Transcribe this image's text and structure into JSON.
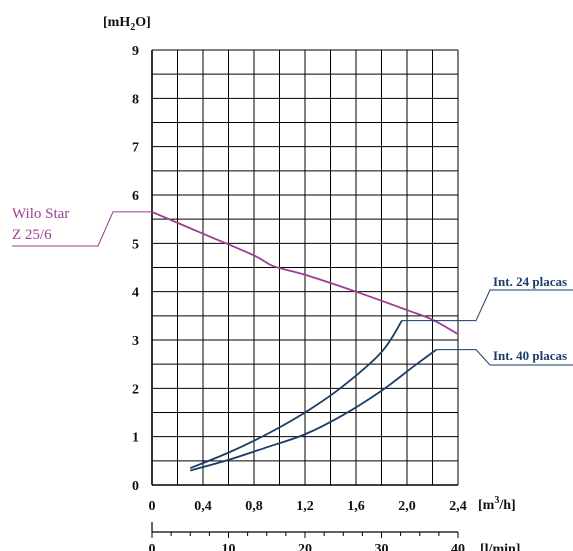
{
  "chart_data": {
    "type": "line",
    "y_unit": {
      "main": "[mH",
      "sub": "2",
      "tail": "O]"
    },
    "x_unit": {
      "main": "[m",
      "sup": "3",
      "tail": "/h]"
    },
    "x2_unit": "[l/min]",
    "xlim": [
      0,
      2.4
    ],
    "ylim": [
      0,
      9
    ],
    "x_ticks": [
      "0",
      "0,4",
      "0,8",
      "1,2",
      "1,6",
      "2,0",
      "2,4"
    ],
    "y_ticks": [
      "0",
      "1",
      "2",
      "3",
      "4",
      "5",
      "6",
      "7",
      "8",
      "9"
    ],
    "x2_ticks": [
      "0",
      "10",
      "20",
      "30",
      "40"
    ],
    "x2_range": [
      0,
      40
    ],
    "grid": true,
    "colors": {
      "pump": "#9b3f8f",
      "system": "#1b3d66",
      "grid": "#000000"
    },
    "series": [
      {
        "name": "Wilo Star\nZ 25/6",
        "label_lines": [
          "Wilo Star",
          "Z 25/6"
        ],
        "color": "#9b3f8f",
        "points": [
          [
            0,
            5.65
          ],
          [
            0.4,
            5.2
          ],
          [
            0.8,
            4.75
          ],
          [
            0.95,
            4.53
          ],
          [
            1.2,
            4.35
          ],
          [
            1.6,
            4.0
          ],
          [
            2.0,
            3.62
          ],
          [
            2.2,
            3.42
          ],
          [
            2.4,
            3.12
          ]
        ]
      },
      {
        "name": "Int. 24 placas",
        "label_lines": [
          "Int. 24 placas"
        ],
        "color": "#1b3d66",
        "points": [
          [
            0.3,
            0.35
          ],
          [
            0.6,
            0.67
          ],
          [
            0.9,
            1.05
          ],
          [
            1.2,
            1.5
          ],
          [
            1.5,
            2.05
          ],
          [
            1.8,
            2.75
          ],
          [
            1.96,
            3.4
          ]
        ]
      },
      {
        "name": "Int. 40 placas",
        "label_lines": [
          "Int. 40 placas"
        ],
        "color": "#1b3d66",
        "points": [
          [
            0.3,
            0.3
          ],
          [
            0.6,
            0.52
          ],
          [
            0.9,
            0.78
          ],
          [
            1.2,
            1.05
          ],
          [
            1.5,
            1.45
          ],
          [
            1.8,
            1.95
          ],
          [
            2.05,
            2.45
          ],
          [
            2.23,
            2.8
          ]
        ]
      }
    ]
  }
}
